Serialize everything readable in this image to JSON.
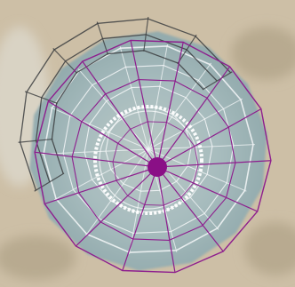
{
  "scene": {
    "subject": "aerial-view-circular-structure-wireframe-overlay",
    "colors": {
      "ground": "#cdbfa6",
      "ground_dark": "#b8aa90",
      "pale_patch": "#d9d3c4",
      "canopy": "#9fb7bd",
      "wire_white": "#f4f7f8",
      "wire_dark": "#3b3d3f",
      "wire_magenta": "#8e1e8e",
      "hub": "#8a0f86",
      "ring": "#ffffff"
    }
  }
}
